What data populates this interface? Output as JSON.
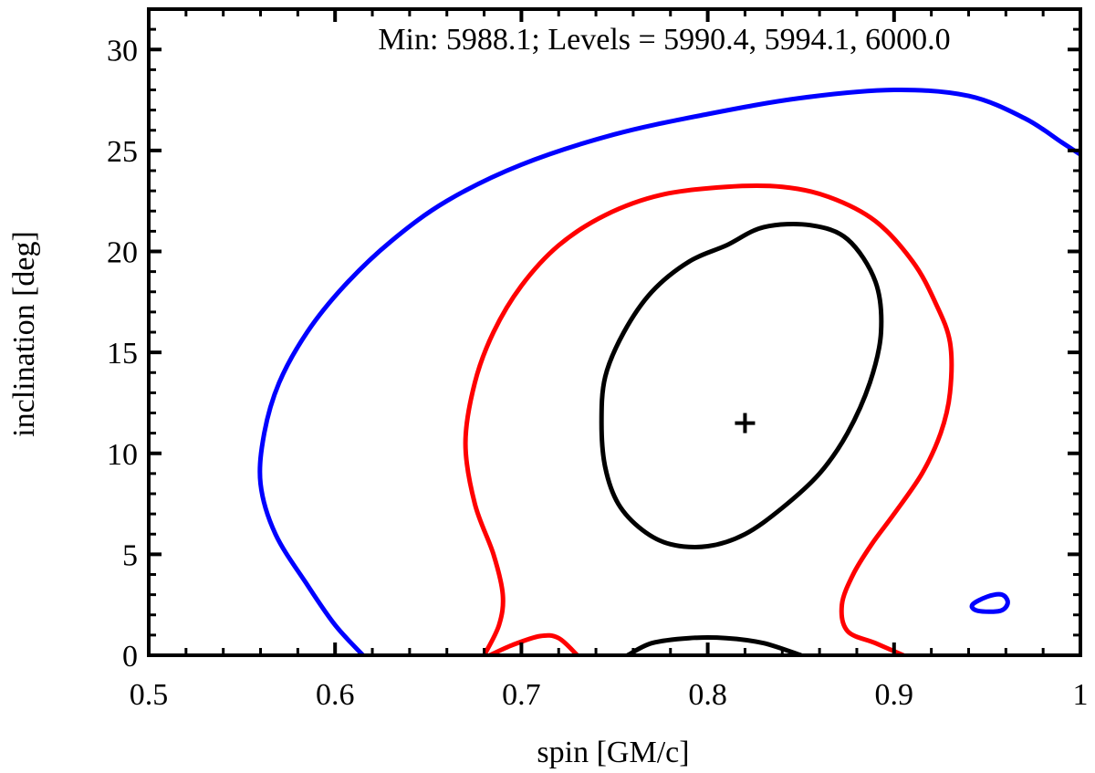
{
  "chart_data": {
    "type": "contour",
    "title": "",
    "annotation": "Min: 5988.1; Levels = 5990.4, 5994.1, 6000.0",
    "xlabel": "spin [GM/c]",
    "ylabel": "inclination [deg]",
    "xlim": [
      0.5,
      1.0
    ],
    "ylim": [
      0,
      32
    ],
    "x_ticks": [
      0.5,
      0.6,
      0.7,
      0.8,
      0.9,
      1.0
    ],
    "x_tick_labels": [
      "0.5",
      "0.6",
      "0.7",
      "0.8",
      "0.9",
      "1"
    ],
    "y_ticks": [
      0,
      5,
      10,
      15,
      20,
      25,
      30
    ],
    "y_tick_labels": [
      "0",
      "5",
      "10",
      "15",
      "20",
      "25",
      "30"
    ],
    "minimum": {
      "value": 5988.1,
      "spin": 0.82,
      "inclination": 11.5,
      "marker": "plus"
    },
    "levels": [
      {
        "level": 5990.4,
        "color": "#000000",
        "contours": [
          {
            "closed": true,
            "points": [
              [
                0.83,
                21.2
              ],
              [
                0.855,
                21.3
              ],
              [
                0.875,
                20.6
              ],
              [
                0.89,
                18.5
              ],
              [
                0.893,
                16.0
              ],
              [
                0.887,
                13.5
              ],
              [
                0.875,
                11.0
              ],
              [
                0.86,
                9.0
              ],
              [
                0.84,
                7.3
              ],
              [
                0.82,
                6.0
              ],
              [
                0.8,
                5.4
              ],
              [
                0.78,
                5.5
              ],
              [
                0.765,
                6.2
              ],
              [
                0.752,
                7.5
              ],
              [
                0.745,
                9.3
              ],
              [
                0.743,
                11.5
              ],
              [
                0.745,
                13.8
              ],
              [
                0.755,
                16.0
              ],
              [
                0.77,
                18.0
              ],
              [
                0.79,
                19.5
              ],
              [
                0.81,
                20.3
              ]
            ]
          },
          {
            "closed": false,
            "points": [
              [
                0.757,
                0.0
              ],
              [
                0.77,
                0.6
              ],
              [
                0.79,
                0.85
              ],
              [
                0.81,
                0.85
              ],
              [
                0.83,
                0.6
              ],
              [
                0.85,
                0.0
              ]
            ]
          }
        ]
      },
      {
        "level": 5994.1,
        "color": "#ff0000",
        "contours": [
          {
            "closed": false,
            "points": [
              [
                0.68,
                0.0
              ],
              [
                0.688,
                1.5
              ],
              [
                0.69,
                3.0
              ],
              [
                0.685,
                5.0
              ],
              [
                0.675,
                7.5
              ],
              [
                0.67,
                10.5
              ],
              [
                0.675,
                13.5
              ],
              [
                0.685,
                16.0
              ],
              [
                0.7,
                18.3
              ],
              [
                0.72,
                20.3
              ],
              [
                0.745,
                21.8
              ],
              [
                0.775,
                22.8
              ],
              [
                0.81,
                23.2
              ],
              [
                0.84,
                23.2
              ],
              [
                0.865,
                22.7
              ],
              [
                0.89,
                21.5
              ],
              [
                0.91,
                19.5
              ],
              [
                0.922,
                17.5
              ],
              [
                0.93,
                15.5
              ],
              [
                0.93,
                13.0
              ],
              [
                0.925,
                11.0
              ],
              [
                0.915,
                9.0
              ],
              [
                0.9,
                7.0
              ],
              [
                0.888,
                5.5
              ],
              [
                0.878,
                4.0
              ],
              [
                0.872,
                2.5
              ],
              [
                0.875,
                1.2
              ],
              [
                0.89,
                0.6
              ],
              [
                0.905,
                0.0
              ]
            ]
          },
          {
            "closed": false,
            "points": [
              [
                0.683,
                0.0
              ],
              [
                0.695,
                0.5
              ],
              [
                0.71,
                0.95
              ],
              [
                0.72,
                0.85
              ],
              [
                0.73,
                0.0
              ]
            ]
          }
        ]
      },
      {
        "level": 6000.0,
        "color": "#0000ff",
        "contours": [
          {
            "closed": false,
            "points": [
              [
                0.615,
                0.0
              ],
              [
                0.6,
                1.5
              ],
              [
                0.585,
                3.5
              ],
              [
                0.568,
                6.0
              ],
              [
                0.56,
                8.5
              ],
              [
                0.562,
                11.0
              ],
              [
                0.57,
                13.5
              ],
              [
                0.585,
                16.0
              ],
              [
                0.605,
                18.3
              ],
              [
                0.63,
                20.5
              ],
              [
                0.66,
                22.5
              ],
              [
                0.7,
                24.3
              ],
              [
                0.75,
                25.8
              ],
              [
                0.8,
                26.8
              ],
              [
                0.85,
                27.6
              ],
              [
                0.9,
                28.0
              ],
              [
                0.94,
                27.7
              ],
              [
                0.97,
                26.6
              ],
              [
                0.99,
                25.4
              ],
              [
                1.0,
                24.8
              ]
            ]
          },
          {
            "closed": true,
            "points": [
              [
                0.942,
                2.5
              ],
              [
                0.95,
                2.9
              ],
              [
                0.958,
                3.0
              ],
              [
                0.961,
                2.6
              ],
              [
                0.957,
                2.2
              ],
              [
                0.945,
                2.2
              ]
            ]
          }
        ]
      }
    ]
  }
}
